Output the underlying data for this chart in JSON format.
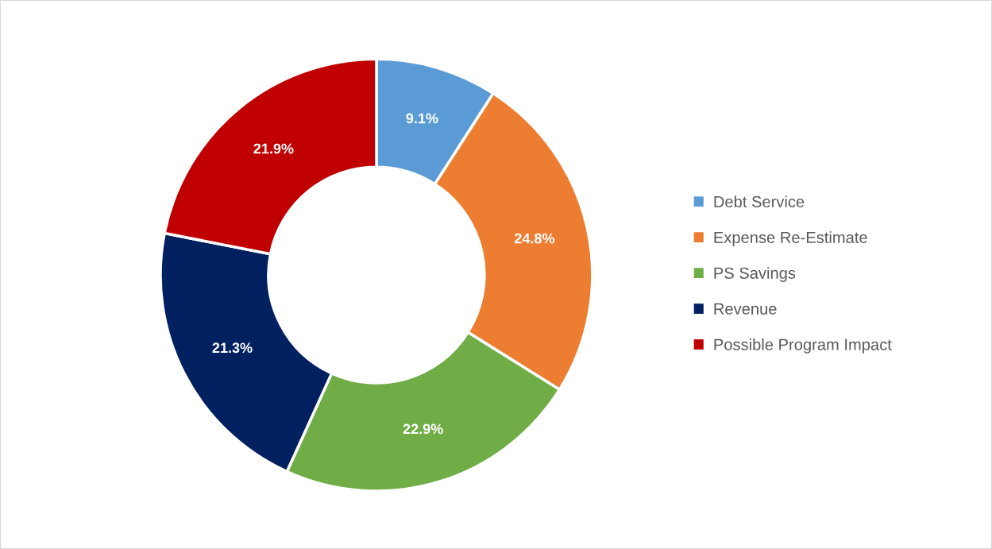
{
  "chart_data": {
    "type": "donut",
    "categories": [
      "Debt Service",
      "Expense Re-Estimate",
      "PS Savings",
      "Revenue",
      "Possible Program Impact"
    ],
    "values": [
      9.1,
      24.8,
      22.9,
      21.3,
      21.9
    ],
    "colors": [
      "#5b9bd5",
      "#ed7d31",
      "#70ad47",
      "#002060",
      "#c00000"
    ],
    "value_labels": [
      "9.1%",
      "24.8%",
      "22.9%",
      "21.3%",
      "21.9%"
    ],
    "legend": "right"
  }
}
